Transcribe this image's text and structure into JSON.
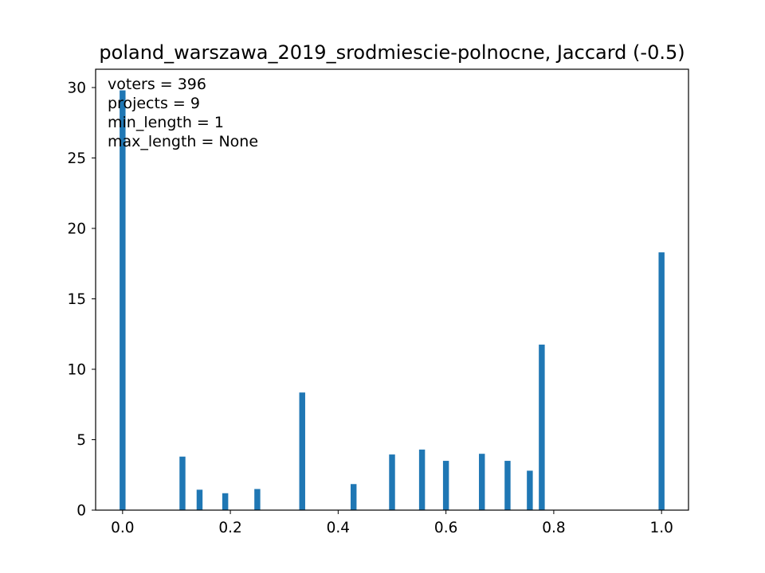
{
  "chart_data": {
    "type": "bar",
    "title": "poland_warszawa_2019_srodmiescie-polnocne, Jaccard (-0.5)",
    "xlabel": "",
    "ylabel": "",
    "xlim": [
      -0.05,
      1.05
    ],
    "ylim": [
      0,
      31.3
    ],
    "grid": false,
    "color": "#1f77b4",
    "bar_width": 0.011,
    "x": [
      0.0,
      0.1111,
      0.1429,
      0.1905,
      0.25,
      0.3333,
      0.4286,
      0.5,
      0.5556,
      0.6,
      0.6667,
      0.7143,
      0.7556,
      0.7778,
      1.0
    ],
    "values": [
      29.8,
      3.8,
      1.45,
      1.2,
      1.5,
      8.35,
      1.85,
      3.95,
      4.3,
      3.5,
      4.0,
      3.5,
      2.8,
      11.75,
      18.3
    ],
    "x_ticks": [
      0.0,
      0.2,
      0.4,
      0.6,
      0.8,
      1.0
    ],
    "x_tick_labels": [
      "0.0",
      "0.2",
      "0.4",
      "0.6",
      "0.8",
      "1.0"
    ],
    "y_ticks": [
      0,
      5,
      10,
      15,
      20,
      25,
      30
    ],
    "y_tick_labels": [
      "0",
      "5",
      "10",
      "15",
      "20",
      "25",
      "30"
    ],
    "annotations": [
      "voters = 396",
      "projects = 9",
      "min_length = 1",
      "max_length = None"
    ]
  }
}
